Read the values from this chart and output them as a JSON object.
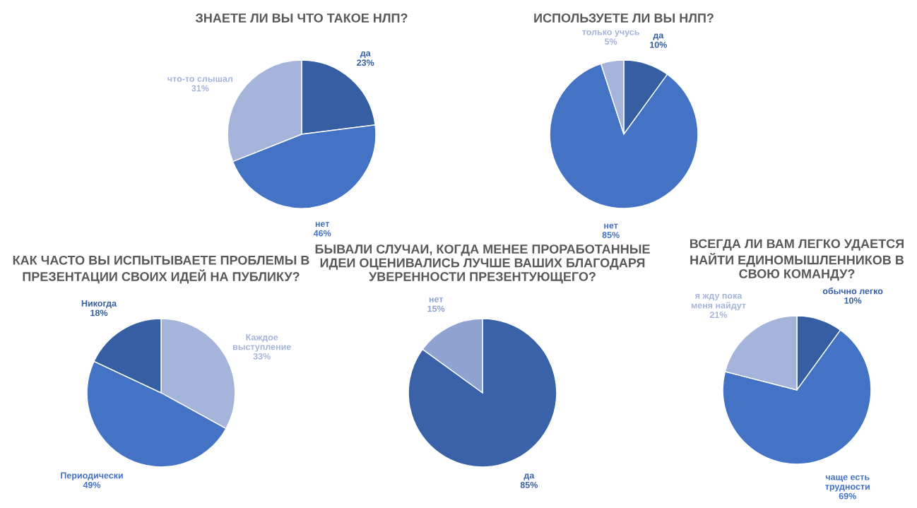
{
  "chart_data": [
    {
      "type": "pie",
      "title": "ЗНАЕТЕ ЛИ ВЫ ЧТО ТАКОЕ НЛП?",
      "categories": [
        "да",
        "нет",
        "что-то слышал"
      ],
      "values": [
        23,
        46,
        31
      ],
      "value_labels": [
        "23%",
        "46%",
        "31%"
      ],
      "colors": [
        "#355ea3",
        "#4472c4",
        "#a5b4da"
      ]
    },
    {
      "type": "pie",
      "title": "ИСПОЛЬЗУЕТЕ ЛИ ВЫ НЛП?",
      "categories": [
        "да",
        "нет",
        "только учусь"
      ],
      "values": [
        10,
        85,
        5
      ],
      "value_labels": [
        "10%",
        "85%",
        "5%"
      ],
      "colors": [
        "#355ea3",
        "#4472c4",
        "#a5b4da"
      ]
    },
    {
      "type": "pie",
      "title": "КАК ЧАСТО ВЫ ИСПЫТЫВАЕТЕ ПРОБЛЕМЫ В\nПРЕЗЕНТАЦИИ СВОИХ ИДЕЙ НА ПУБЛИКУ?",
      "categories": [
        "Каждое\nвыступление",
        "Периодически",
        "Никогда"
      ],
      "values": [
        33,
        49,
        18
      ],
      "value_labels": [
        "33%",
        "49%",
        "18%"
      ],
      "colors": [
        "#a5b4da",
        "#4472c4",
        "#355ea3"
      ]
    },
    {
      "type": "pie",
      "title": "БЫВАЛИ СЛУЧАИ, КОГДА МЕНЕЕ ПРОРАБОТАННЫЕ\nИДЕИ ОЦЕНИВАЛИСЬ ЛУЧШЕ ВАШИХ БЛАГОДАРЯ\nУВЕРЕННОСТИ ПРЕЗЕНТУЮЩЕГО?",
      "categories": [
        "да",
        "нет"
      ],
      "values": [
        85,
        15
      ],
      "value_labels": [
        "85%",
        "15%"
      ],
      "colors": [
        "#3a62a8",
        "#8fa3d3"
      ]
    },
    {
      "type": "pie",
      "title": "ВСЕГДА ЛИ ВАМ ЛЕГКО УДАЕТСЯ\nНАЙТИ ЕДИНОМЫШЛЕННИКОВ В\nСВОЮ КОМАНДУ?",
      "categories": [
        "обычно легко",
        "чаще есть\nтрудности",
        "я жду пока\nменя найдут"
      ],
      "values": [
        10,
        69,
        21
      ],
      "value_labels": [
        "10%",
        "69%",
        "21%"
      ],
      "colors": [
        "#355ea3",
        "#4472c4",
        "#a5b4da"
      ]
    }
  ]
}
